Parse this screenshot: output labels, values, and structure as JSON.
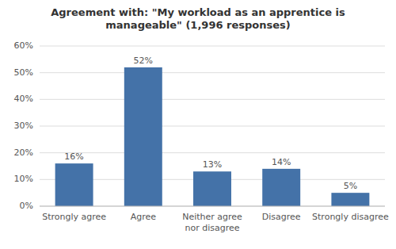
{
  "chart_data": {
    "type": "bar",
    "title": "Agreement with: \"My workload as an apprentice is\nmanageable\" (1,996 responses)",
    "categories": [
      "Strongly agree",
      "Agree",
      "Neither agree\nnor disagree",
      "Disagree",
      "Strongly disagree"
    ],
    "values": [
      16,
      52,
      13,
      14,
      5
    ],
    "value_labels": [
      "16%",
      "52%",
      "13%",
      "14%",
      "5%"
    ],
    "data_labels": true,
    "color": "#4472a8",
    "ylim": [
      0,
      60
    ],
    "yticks": [
      {
        "value": 0,
        "label": "0%"
      },
      {
        "value": 10,
        "label": "10%"
      },
      {
        "value": 20,
        "label": "20%"
      },
      {
        "value": 30,
        "label": "30%"
      },
      {
        "value": 40,
        "label": "40%"
      },
      {
        "value": 50,
        "label": "50%"
      },
      {
        "value": 60,
        "label": "60%"
      }
    ],
    "grid": true
  }
}
